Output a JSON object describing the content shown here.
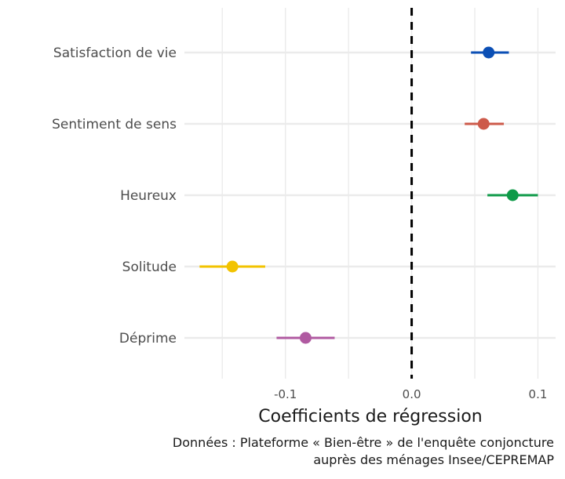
{
  "chart_data": {
    "type": "scatter",
    "subtype": "coefficient-plot",
    "xlabel": "Coefficients de régression",
    "ylabel": "",
    "xlim": [
      -0.18,
      0.114
    ],
    "xticks": [
      -0.1,
      0.0,
      0.1
    ],
    "xtick_labels": [
      "-0.1",
      "0.0",
      "0.1"
    ],
    "minor_gridlines": [
      -0.15,
      -0.05,
      0.05
    ],
    "grid": true,
    "reference_line": 0.0,
    "caption": [
      "Données : Plateforme « Bien-être » de l'enquête conjoncture",
      "auprès des ménages Insee/CEPREMAP"
    ],
    "series": [
      {
        "name": "Satisfaction de vie",
        "estimate": 0.061,
        "low": 0.047,
        "high": 0.077,
        "color": "#0b4fb5"
      },
      {
        "name": "Sentiment de sens",
        "estimate": 0.057,
        "low": 0.042,
        "high": 0.073,
        "color": "#cd5a4a"
      },
      {
        "name": "Heureux",
        "estimate": 0.08,
        "low": 0.06,
        "high": 0.1,
        "color": "#0e9a48"
      },
      {
        "name": "Solitude",
        "estimate": -0.142,
        "low": -0.168,
        "high": -0.116,
        "color": "#f2c300"
      },
      {
        "name": "Déprime",
        "estimate": -0.084,
        "low": -0.107,
        "high": -0.061,
        "color": "#b05aa1"
      }
    ]
  }
}
